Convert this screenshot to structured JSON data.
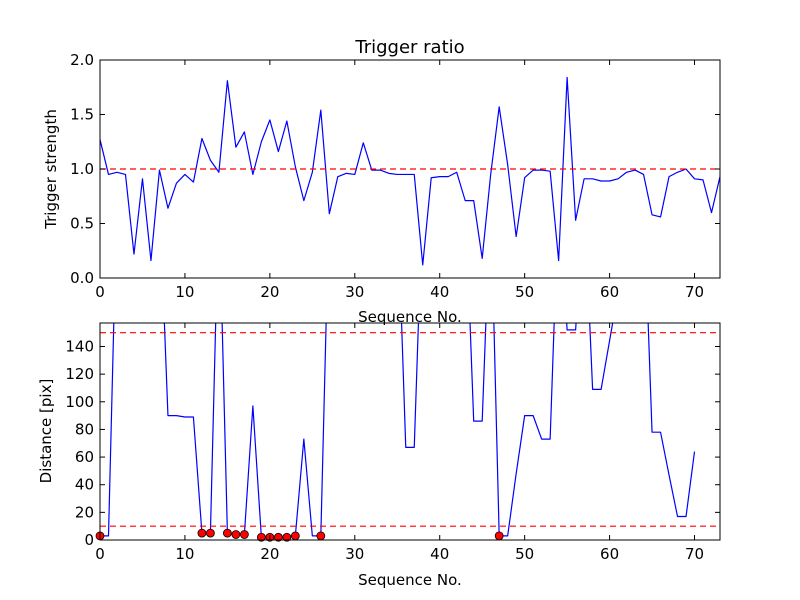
{
  "chart_data": [
    {
      "type": "line",
      "title": "Trigger ratio",
      "xlabel": "Sequence No.",
      "ylabel": "Trigger strength",
      "xlim": [
        0,
        73
      ],
      "ylim": [
        0.0,
        2.0
      ],
      "xticks": [
        "0",
        "10",
        "20",
        "30",
        "40",
        "50",
        "60",
        "70"
      ],
      "yticks": [
        "0.0",
        "0.5",
        "1.0",
        "1.5",
        "2.0"
      ],
      "grid": false,
      "series": [
        {
          "color": "#0000ff",
          "x": [
            0,
            1,
            2,
            3,
            4,
            5,
            6,
            7,
            8,
            9,
            10,
            11,
            12,
            13,
            14,
            15,
            16,
            17,
            18,
            19,
            20,
            21,
            22,
            23,
            24,
            25,
            26,
            27,
            28,
            29,
            30,
            31,
            32,
            33,
            34,
            35,
            36,
            37,
            38,
            39,
            40,
            41,
            42,
            43,
            44,
            45,
            46,
            47,
            48,
            49,
            50,
            51,
            52,
            53,
            54,
            55,
            56,
            57,
            58,
            59,
            60,
            61,
            62,
            63,
            64,
            65,
            66,
            67,
            68,
            69,
            70,
            71,
            72,
            73
          ],
          "y": [
            1.27,
            0.95,
            0.97,
            0.95,
            0.22,
            0.91,
            0.16,
            0.99,
            0.64,
            0.87,
            0.95,
            0.88,
            1.28,
            1.08,
            0.97,
            1.81,
            1.2,
            1.34,
            0.95,
            1.25,
            1.45,
            1.16,
            1.44,
            1.02,
            0.71,
            0.97,
            1.54,
            0.59,
            0.93,
            0.96,
            0.95,
            1.24,
            0.99,
            0.99,
            0.96,
            0.95,
            0.95,
            0.95,
            0.12,
            0.92,
            0.93,
            0.93,
            0.97,
            0.71,
            0.71,
            0.18,
            0.95,
            1.57,
            1.04,
            0.38,
            0.92,
            0.99,
            0.99,
            0.98,
            0.16,
            1.84,
            0.53,
            0.91,
            0.91,
            0.89,
            0.89,
            0.91,
            0.97,
            0.99,
            0.95,
            0.58,
            0.56,
            0.93,
            0.97,
            1.0,
            0.91,
            0.9,
            0.6,
            0.93
          ]
        }
      ],
      "reference_lines": [
        {
          "y": 1.0,
          "color": "#ff0000",
          "style": "dashed"
        }
      ]
    },
    {
      "type": "line",
      "xlabel": "Sequence No.",
      "ylabel": "Distance [pix]",
      "xlim": [
        0,
        73
      ],
      "ylim": [
        0,
        157
      ],
      "xticks": [
        "0",
        "10",
        "20",
        "30",
        "40",
        "50",
        "60",
        "70"
      ],
      "yticks": [
        "0",
        "20",
        "40",
        "60",
        "80",
        "100",
        "120",
        "140"
      ],
      "grid": false,
      "series": [
        {
          "color": "#0000ff",
          "x": [
            0,
            1,
            2,
            7,
            8,
            9,
            10,
            11,
            12,
            13,
            14,
            15,
            16,
            17,
            18,
            19,
            20,
            21,
            22,
            23,
            24,
            25,
            26,
            27,
            35,
            36,
            37,
            38,
            43,
            44,
            45,
            46,
            47,
            48,
            49,
            50,
            51,
            52,
            53,
            54,
            55,
            56,
            57,
            58,
            59,
            63,
            64,
            65,
            66,
            67,
            68,
            69,
            70
          ],
          "y": [
            3,
            3,
            250,
            250,
            90,
            90,
            89,
            89,
            5,
            5,
            250,
            5,
            4,
            4,
            97,
            2,
            2,
            2,
            2,
            3,
            73,
            3,
            3,
            250,
            250,
            67,
            67,
            250,
            250,
            86,
            86,
            250,
            3,
            3,
            48,
            90,
            90,
            73,
            73,
            250,
            152,
            152,
            250,
            109,
            109,
            250,
            250,
            78,
            78,
            47,
            17,
            17,
            64
          ]
        },
        {
          "name": "",
          "type": "scatter",
          "marker": "circle",
          "color": "#ff0000",
          "x": [
            0,
            12,
            13,
            15,
            16,
            17,
            19,
            20,
            21,
            22,
            23,
            26,
            47
          ],
          "y": [
            3,
            5,
            5,
            5,
            4,
            4,
            2,
            2,
            2,
            2,
            3,
            3,
            3
          ]
        }
      ],
      "reference_lines": [
        {
          "y": 150,
          "color": "#ff0000",
          "style": "dashed"
        },
        {
          "y": 10,
          "color": "#ff0000",
          "style": "dashed"
        }
      ]
    }
  ]
}
